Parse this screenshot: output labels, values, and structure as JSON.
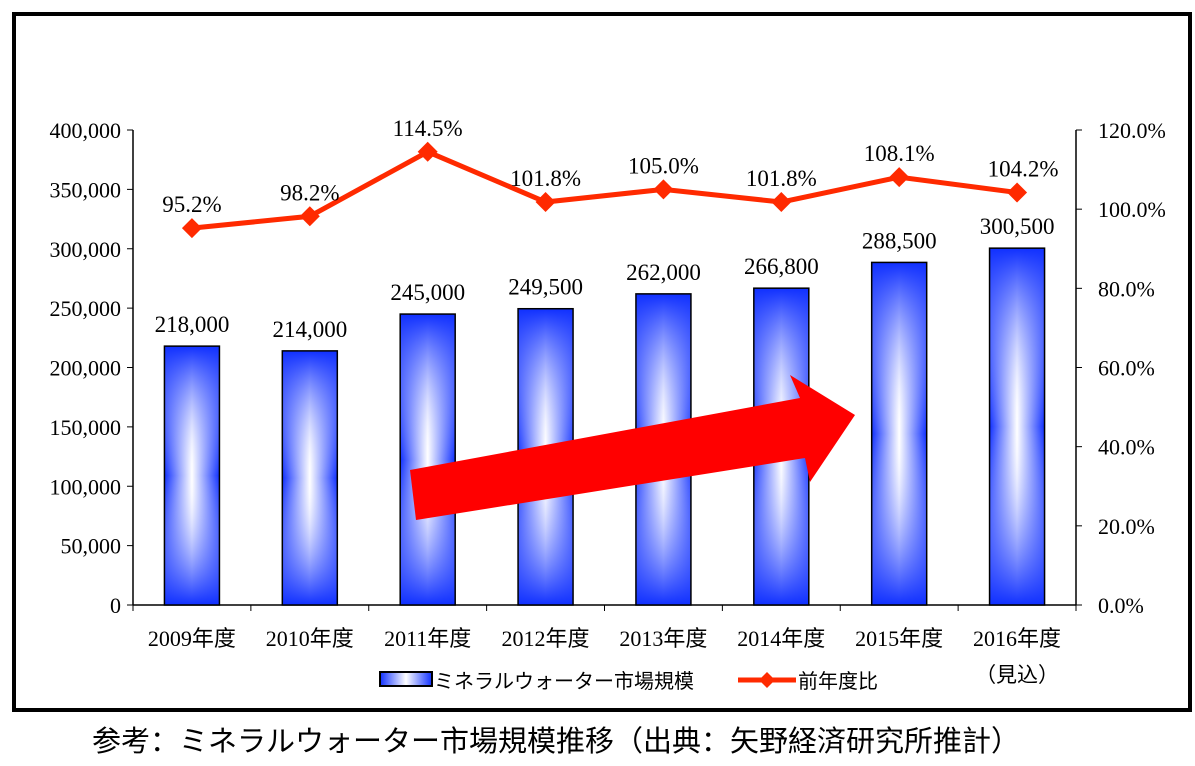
{
  "chart_data": {
    "type": "bar+line",
    "categories": [
      "2009年度",
      "2010年度",
      "2011年度",
      "2012年度",
      "2013年度",
      "2014年度",
      "2015年度",
      "2016年度"
    ],
    "category_sublabels": [
      "",
      "",
      "",
      "",
      "",
      "",
      "",
      "（見込）"
    ],
    "series": [
      {
        "name": "ミネラルウォーター市場規模",
        "type": "bar",
        "axis": "left",
        "values": [
          218000,
          214000,
          245000,
          249500,
          262000,
          266800,
          288500,
          300500
        ],
        "labels": [
          "218,000",
          "214,000",
          "245,000",
          "249,500",
          "262,000",
          "266,800",
          "288,500",
          "300,500"
        ],
        "color": "#1a3cff"
      },
      {
        "name": "前年度比",
        "type": "line",
        "axis": "right",
        "values": [
          95.2,
          98.2,
          114.5,
          101.8,
          105.0,
          101.8,
          108.1,
          104.2
        ],
        "labels": [
          "95.2%",
          "98.2%",
          "114.5%",
          "101.8%",
          "105.0%",
          "101.8%",
          "108.1%",
          "104.2%"
        ],
        "color": "#ff2a00"
      }
    ],
    "y_left": {
      "range": [
        0,
        400000
      ],
      "ticks": [
        "0",
        "50,000",
        "100,000",
        "150,000",
        "200,000",
        "250,000",
        "300,000",
        "350,000",
        "400,000"
      ]
    },
    "y_right": {
      "range": [
        0,
        120
      ],
      "ticks": [
        "0.0%",
        "20.0%",
        "40.0%",
        "60.0%",
        "80.0%",
        "100.0%",
        "120.0%"
      ]
    },
    "legend": {
      "placement": "bottom",
      "items": [
        "ミネラルウォーター市場規模",
        "前年度比"
      ]
    },
    "annotation": "red upward trend arrow",
    "grid": false
  },
  "caption": "参考：ミネラルウォーター市場規模推移（出典：矢野経済研究所推計）"
}
